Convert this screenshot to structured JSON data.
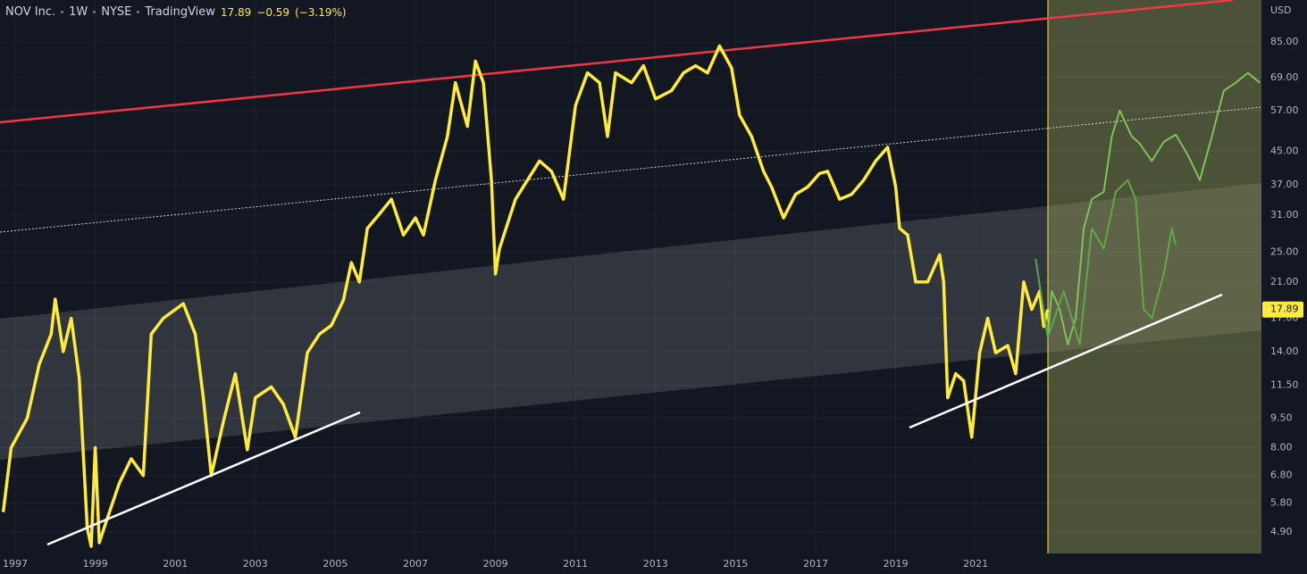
{
  "header": {
    "symbol": "NOV Inc.",
    "interval": "1W",
    "exchange": "NYSE",
    "source": "TradingView",
    "last": "17.89",
    "change": "−0.59",
    "change_pct": "(−3.19%)"
  },
  "chart_data": {
    "type": "line",
    "y_unit": "USD",
    "log_scale": true,
    "grid": true,
    "xlim": [
      1996.62,
      2028.14
    ],
    "xticks": [
      1997,
      1999,
      2001,
      2003,
      2005,
      2007,
      2009,
      2011,
      2013,
      2015,
      2017,
      2019,
      2021
    ],
    "ylim": [
      4.32,
      108.5
    ],
    "yticks": [
      {
        "value": 4.9,
        "label": "4.90"
      },
      {
        "value": 5.8,
        "label": "5.80"
      },
      {
        "value": 6.8,
        "label": "6.80"
      },
      {
        "value": 8,
        "label": "8.00"
      },
      {
        "value": 9.5,
        "label": "9.50"
      },
      {
        "value": 11.5,
        "label": "11.50"
      },
      {
        "value": 14,
        "label": "14.00"
      },
      {
        "value": 17,
        "label": "17.00"
      },
      {
        "value": 21,
        "label": "21.00"
      },
      {
        "value": 25,
        "label": "25.00"
      },
      {
        "value": 31,
        "label": "31.00"
      },
      {
        "value": 37,
        "label": "37.00"
      },
      {
        "value": 45,
        "label": "45.00"
      },
      {
        "value": 57,
        "label": "57.00"
      },
      {
        "value": 69,
        "label": "69.00"
      },
      {
        "value": 85,
        "label": "85.00"
      }
    ],
    "series": [
      {
        "color": "#ffeb3b",
        "x": [
          1996.7,
          1996.9,
          1997.3,
          1997.6,
          1997.9,
          1998.0,
          1998.2,
          1998.4,
          1998.6,
          1998.8,
          1998.9,
          1999.0,
          1999.1,
          1999.3,
          1999.6,
          1999.9,
          2000.2,
          2000.4,
          2000.7,
          2001.2,
          2001.5,
          2001.7,
          2001.9,
          2002.2,
          2002.5,
          2002.8,
          2003.0,
          2003.4,
          2003.7,
          2004.0,
          2004.3,
          2004.6,
          2004.9,
          2005.2,
          2005.4,
          2005.6,
          2005.8,
          2006.1,
          2006.4,
          2006.7,
          2007.0,
          2007.2,
          2007.5,
          2007.8,
          2008.0,
          2008.3,
          2008.5,
          2008.7,
          2008.9,
          2009.0,
          2009.1,
          2009.5,
          2009.8,
          2010.1,
          2010.4,
          2010.7,
          2011.0,
          2011.3,
          2011.6,
          2011.8,
          2012.0,
          2012.4,
          2012.7,
          2013.0,
          2013.4,
          2013.7,
          2014.0,
          2014.3,
          2014.6,
          2014.9,
          2015.1,
          2015.4,
          2015.7,
          2015.9,
          2016.2,
          2016.5,
          2016.8,
          2017.1,
          2017.3,
          2017.6,
          2017.9,
          2018.2,
          2018.5,
          2018.8,
          2019.0,
          2019.1,
          2019.3,
          2019.5,
          2019.8,
          2020.1,
          2020.2,
          2020.3,
          2020.5,
          2020.7,
          2020.9,
          2021.1,
          2021.3,
          2021.5,
          2021.8,
          2022.0,
          2022.2,
          2022.4,
          2022.6,
          2022.7,
          2022.8
        ],
        "values": [
          5.5,
          8,
          9.5,
          13,
          15.5,
          19,
          14,
          17,
          12,
          5,
          4.5,
          8,
          4.6,
          5.3,
          6.5,
          7.5,
          6.8,
          15.5,
          17,
          18.5,
          15.5,
          10.7,
          6.8,
          9.3,
          12.3,
          7.9,
          10.7,
          11.4,
          10.3,
          8.5,
          13.9,
          15.5,
          16.3,
          18.9,
          23.5,
          21,
          28.7,
          31.2,
          34,
          27.6,
          30.5,
          27.6,
          38,
          49,
          67,
          52,
          76,
          67,
          38,
          22,
          25.5,
          34,
          38,
          42.5,
          40,
          34,
          58.7,
          71,
          67,
          49,
          71,
          67,
          74,
          61,
          64,
          71,
          74,
          71,
          83,
          73,
          55.5,
          49,
          40,
          36.5,
          30.5,
          35,
          36.5,
          39.5,
          40,
          34,
          35,
          38,
          42.5,
          46,
          36.5,
          28.7,
          27.6,
          21,
          21,
          24.6,
          21,
          10.7,
          12.3,
          11.8,
          8.5,
          13.9,
          17,
          13.9,
          14.5,
          12.3,
          21,
          17.9,
          19.9,
          16.2,
          17.89
        ]
      },
      {
        "color": "#7cc35a",
        "x": [
          2022.8,
          2022.9,
          2023.1,
          2023.3,
          2023.5,
          2023.7,
          2023.9,
          2024.2,
          2024.4,
          2024.6,
          2024.9,
          2025.1,
          2025.4,
          2025.7,
          2026.0,
          2026.3,
          2026.6,
          2026.9,
          2027.2,
          2027.5,
          2027.8,
          2028.1
        ],
        "values": [
          15.2,
          19.9,
          17.9,
          14.6,
          17,
          28.7,
          34,
          35.5,
          49,
          57,
          49,
          47,
          42.5,
          47.5,
          49.5,
          44,
          38,
          49,
          64,
          67,
          71,
          67
        ]
      },
      {
        "color": "#5fa84a",
        "x": [
          2022.5,
          2022.8,
          2023.2,
          2023.6,
          2023.9,
          2024.2,
          2024.5,
          2024.8,
          2025.0,
          2025.2,
          2025.4,
          2025.7,
          2025.9,
          2026.0
        ],
        "values": [
          24,
          15.2,
          19.9,
          14.6,
          28.7,
          25.5,
          35.5,
          38,
          34,
          17.9,
          17,
          22,
          28.7,
          26
        ]
      }
    ]
  }
}
